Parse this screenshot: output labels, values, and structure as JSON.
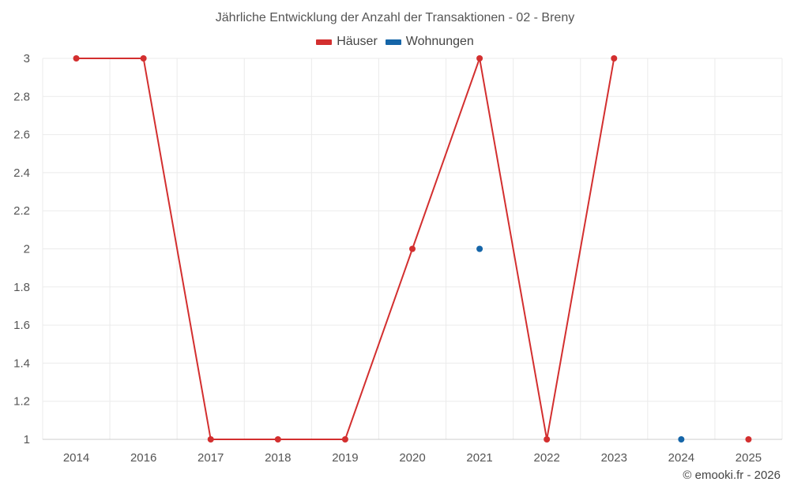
{
  "chart_data": {
    "type": "line",
    "title": "Jährliche Entwicklung der Anzahl der Transaktionen - 02 - Breny",
    "categories": [
      "2014",
      "2016",
      "2017",
      "2018",
      "2019",
      "2020",
      "2021",
      "2022",
      "2023",
      "2024",
      "2025"
    ],
    "y_ticks": [
      "1",
      "1.2",
      "1.4",
      "1.6",
      "1.8",
      "2",
      "2.2",
      "2.4",
      "2.6",
      "2.8",
      "3"
    ],
    "ylim": [
      1,
      3
    ],
    "grid": true,
    "legend_position": "top-center",
    "series": [
      {
        "name": "Häuser",
        "color": "#d32f2f",
        "values": [
          3,
          3,
          1,
          1,
          1,
          2,
          3,
          1,
          3,
          null,
          1
        ]
      },
      {
        "name": "Wohnungen",
        "color": "#1565a8",
        "values": [
          null,
          null,
          null,
          null,
          null,
          null,
          2,
          null,
          null,
          1,
          null
        ]
      }
    ]
  },
  "footer": {
    "credit": "© emooki.fr - 2026"
  }
}
